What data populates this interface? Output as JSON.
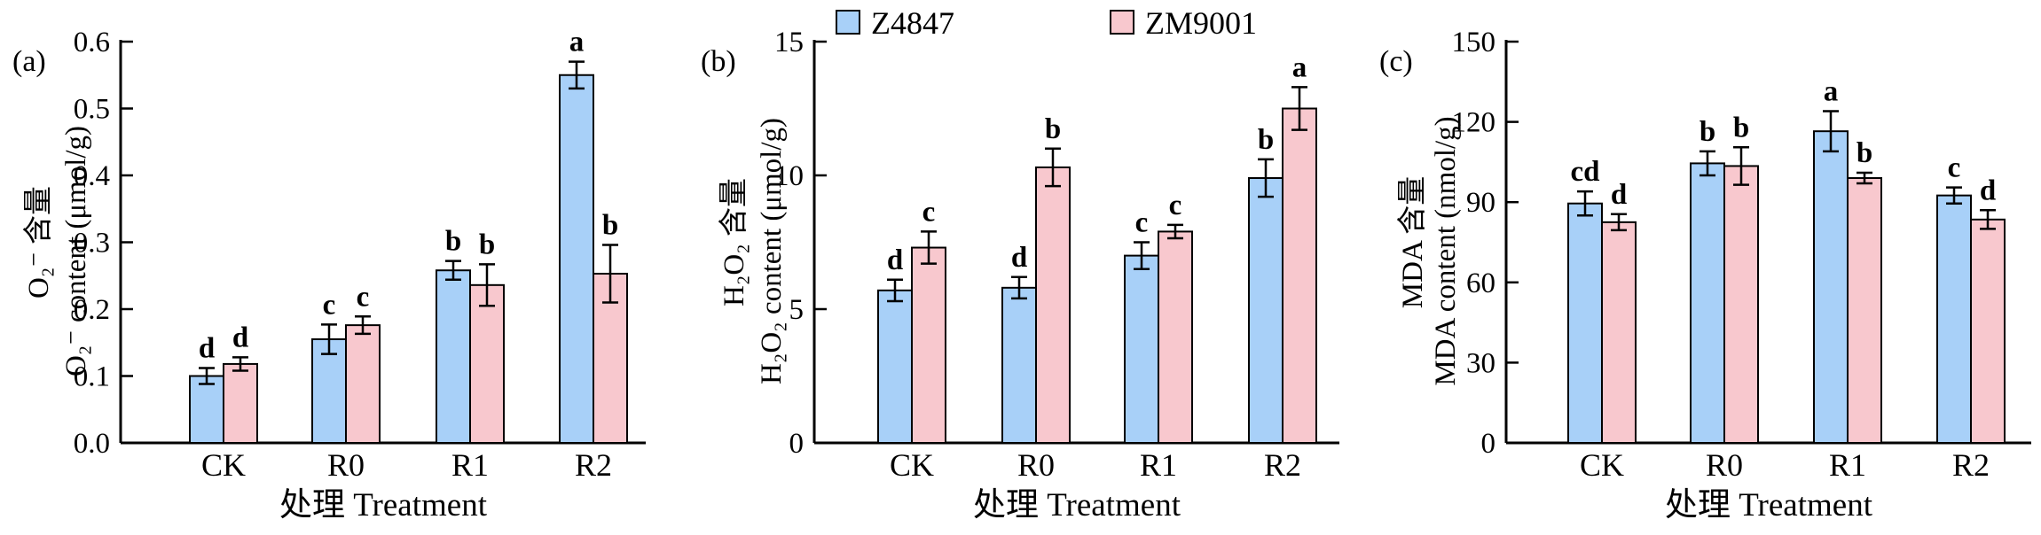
{
  "legend": [
    {
      "name": "Z4847",
      "color": "#a8d0f8"
    },
    {
      "name": "ZM9001",
      "color": "#f8c8ce"
    }
  ],
  "chart_data": [
    {
      "type": "bar",
      "panel_label": "(a)",
      "categories": [
        "CK",
        "R0",
        "R1",
        "R2"
      ],
      "series": [
        {
          "name": "Z4847",
          "values": [
            0.1,
            0.155,
            0.258,
            0.55
          ],
          "errors": [
            0.012,
            0.022,
            0.014,
            0.02
          ],
          "letters": [
            "d",
            "c",
            "b",
            "a"
          ]
        },
        {
          "name": "ZM9001",
          "values": [
            0.118,
            0.176,
            0.236,
            0.253
          ],
          "errors": [
            0.01,
            0.013,
            0.031,
            0.043
          ],
          "letters": [
            "d",
            "c",
            "b",
            "b"
          ]
        }
      ],
      "xlabel": "处理 Treatment",
      "ylabel_cn": "O₂⁻ 含量",
      "ylabel_en": "O₂⁻ content (μmol/g)",
      "ylim": [
        0,
        0.6
      ],
      "yticks": [
        "0.0",
        "0.1",
        "0.2",
        "0.3",
        "0.4",
        "0.5",
        "0.6"
      ]
    },
    {
      "type": "bar",
      "panel_label": "(b)",
      "categories": [
        "CK",
        "R0",
        "R1",
        "R2"
      ],
      "series": [
        {
          "name": "Z4847",
          "values": [
            5.7,
            5.8,
            7.0,
            9.9
          ],
          "errors": [
            0.4,
            0.4,
            0.5,
            0.7
          ],
          "letters": [
            "d",
            "d",
            "c",
            "b"
          ]
        },
        {
          "name": "ZM9001",
          "values": [
            7.3,
            10.3,
            7.9,
            12.5
          ],
          "errors": [
            0.6,
            0.7,
            0.25,
            0.8
          ],
          "letters": [
            "c",
            "b",
            "c",
            "a"
          ]
        }
      ],
      "xlabel": "处理 Treatment",
      "ylabel_cn": "H₂O₂ 含量",
      "ylabel_en": "H₂O₂ content (μmol/g)",
      "ylim": [
        0,
        15
      ],
      "yticks": [
        "0",
        "5",
        "10",
        "15"
      ]
    },
    {
      "type": "bar",
      "panel_label": "(c)",
      "categories": [
        "CK",
        "R0",
        "R1",
        "R2"
      ],
      "series": [
        {
          "name": "Z4847",
          "values": [
            89.5,
            104.5,
            116.5,
            92.5
          ],
          "errors": [
            4.5,
            4.5,
            7.5,
            3.0
          ],
          "letters": [
            "cd",
            "b",
            "a",
            "c"
          ]
        },
        {
          "name": "ZM9001",
          "values": [
            82.5,
            103.5,
            99.0,
            83.5
          ],
          "errors": [
            3.0,
            7.0,
            2.0,
            3.5
          ],
          "letters": [
            "d",
            "b",
            "b",
            "d"
          ]
        }
      ],
      "xlabel": "处理 Treatment",
      "ylabel_cn": "MDA 含量",
      "ylabel_en": "MDA content (nmol/g)",
      "ylim": [
        0,
        150
      ],
      "yticks": [
        "0",
        "30",
        "60",
        "90",
        "120",
        "150"
      ]
    }
  ]
}
